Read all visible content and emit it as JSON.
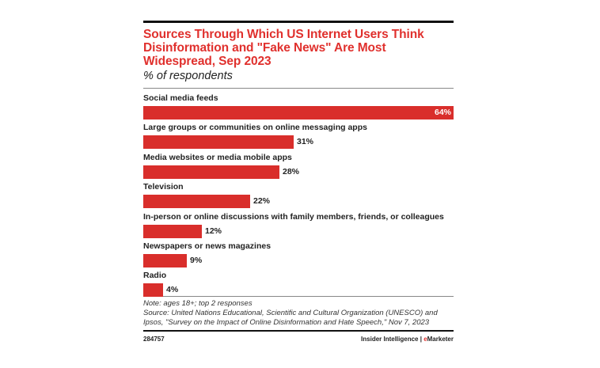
{
  "chart_data": {
    "type": "bar",
    "orientation": "horizontal",
    "title": "Sources Through Which US Internet Users Think Disinformation and \"Fake News\" Are Most Widespread, Sep 2023",
    "subtitle": "% of respondents",
    "categories": [
      "Social media feeds",
      "Large groups or communities on online messaging apps",
      "Media websites or media mobile apps",
      "Television",
      "In-person or online discussions with family members, friends, or colleagues",
      "Newspapers or news magazines",
      "Radio"
    ],
    "values": [
      64,
      31,
      28,
      22,
      12,
      9,
      4
    ],
    "value_labels": [
      "64%",
      "31%",
      "28%",
      "22%",
      "12%",
      "9%",
      "4%"
    ],
    "xlabel": "",
    "ylabel": "",
    "xlim": [
      0,
      64
    ],
    "grid": false,
    "legend": "none",
    "bar_color": "#d92e2b",
    "title_color": "#e0302d"
  },
  "notes": {
    "note": "Note: ages 18+; top 2 responses",
    "source_line1": "Source: United Nations Educational, Scientific and Cultural Organization (UNESCO) and",
    "source_line2": "Ipsos, \"Survey on the Impact of Online Disinformation and Hate Speech,\" Nov 7, 2023"
  },
  "footer": {
    "chart_id": "284757",
    "brand_prefix": "Insider Intelligence | ",
    "brand_e": "e",
    "brand_suffix": "Marketer"
  }
}
